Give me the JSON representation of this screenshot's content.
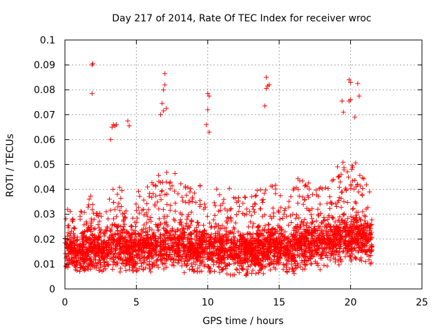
{
  "chart_data": {
    "type": "scatter",
    "title": "Day 217 of 2014, Rate Of TEC Index for receiver wroc",
    "xlabel": "GPS time / hours",
    "ylabel": "ROTI / TECUs",
    "xlim": [
      0,
      25
    ],
    "ylim": [
      0,
      0.1
    ],
    "x_ticks": [
      0,
      5,
      10,
      15,
      20,
      25
    ],
    "x_tick_labels": [
      "0",
      "5",
      "10",
      "15",
      "20",
      "25"
    ],
    "y_ticks": [
      0,
      0.01,
      0.02,
      0.03,
      0.04,
      0.05,
      0.06,
      0.07,
      0.08,
      0.09,
      0.1
    ],
    "y_tick_labels": [
      "0",
      "0.01",
      "0.02",
      "0.03",
      "0.04",
      "0.05",
      "0.06",
      "0.07",
      "0.08",
      "0.09",
      "0.1"
    ],
    "grid": true,
    "marker": "+",
    "color": "#ff0000",
    "data_range_x": [
      0,
      21.5
    ],
    "envelope": {
      "x": [
        0,
        0.5,
        1,
        1.5,
        2,
        2.5,
        3,
        3.5,
        4,
        4.5,
        5,
        5.5,
        6,
        6.5,
        7,
        7.5,
        8,
        8.5,
        9,
        9.5,
        10,
        10.5,
        11,
        11.5,
        12,
        12.5,
        13,
        13.5,
        14,
        14.5,
        15,
        15.5,
        16,
        16.5,
        17,
        17.5,
        18,
        18.5,
        19,
        19.5,
        20,
        20.5,
        21,
        21.5
      ],
      "typical_high": [
        0.035,
        0.03,
        0.028,
        0.04,
        0.035,
        0.03,
        0.038,
        0.045,
        0.042,
        0.04,
        0.038,
        0.04,
        0.042,
        0.045,
        0.05,
        0.045,
        0.048,
        0.045,
        0.04,
        0.042,
        0.045,
        0.04,
        0.038,
        0.04,
        0.035,
        0.038,
        0.04,
        0.042,
        0.04,
        0.045,
        0.04,
        0.035,
        0.04,
        0.045,
        0.042,
        0.04,
        0.042,
        0.045,
        0.048,
        0.05,
        0.048,
        0.05,
        0.045,
        0.04
      ],
      "typical_low": [
        0.008,
        0.008,
        0.007,
        0.007,
        0.008,
        0.007,
        0.007,
        0.008,
        0.006,
        0.007,
        0.006,
        0.007,
        0.006,
        0.005,
        0.004,
        0.005,
        0.006,
        0.006,
        0.007,
        0.006,
        0.007,
        0.006,
        0.006,
        0.005,
        0.004,
        0.005,
        0.006,
        0.006,
        0.005,
        0.006,
        0.007,
        0.006,
        0.006,
        0.007,
        0.008,
        0.007,
        0.008,
        0.008,
        0.008,
        0.009,
        0.009,
        0.009,
        0.01,
        0.01
      ],
      "median": [
        0.015,
        0.015,
        0.014,
        0.015,
        0.016,
        0.015,
        0.016,
        0.017,
        0.016,
        0.016,
        0.015,
        0.016,
        0.016,
        0.017,
        0.018,
        0.017,
        0.017,
        0.016,
        0.016,
        0.016,
        0.016,
        0.016,
        0.015,
        0.015,
        0.014,
        0.015,
        0.015,
        0.016,
        0.016,
        0.017,
        0.016,
        0.015,
        0.016,
        0.017,
        0.018,
        0.018,
        0.018,
        0.019,
        0.02,
        0.021,
        0.021,
        0.021,
        0.02,
        0.019
      ]
    },
    "outliers": [
      [
        1.9,
        0.09
      ],
      [
        1.95,
        0.0905
      ],
      [
        1.9,
        0.0785
      ],
      [
        3.3,
        0.065
      ],
      [
        3.4,
        0.066
      ],
      [
        3.5,
        0.0655
      ],
      [
        3.6,
        0.066
      ],
      [
        4.4,
        0.0675
      ],
      [
        4.5,
        0.0655
      ],
      [
        3.2,
        0.06
      ],
      [
        6.9,
        0.08
      ],
      [
        7.0,
        0.0865
      ],
      [
        7.0,
        0.082
      ],
      [
        6.8,
        0.0745
      ],
      [
        6.9,
        0.0715
      ],
      [
        6.7,
        0.07
      ],
      [
        7.1,
        0.0725
      ],
      [
        10.0,
        0.0785
      ],
      [
        10.1,
        0.0775
      ],
      [
        10.0,
        0.072
      ],
      [
        9.9,
        0.066
      ],
      [
        10.1,
        0.063
      ],
      [
        14.1,
        0.085
      ],
      [
        14.2,
        0.0815
      ],
      [
        14.3,
        0.082
      ],
      [
        14.1,
        0.0805
      ],
      [
        14.0,
        0.0735
      ],
      [
        19.4,
        0.0755
      ],
      [
        19.5,
        0.071
      ],
      [
        19.9,
        0.084
      ],
      [
        20.0,
        0.083
      ],
      [
        20.0,
        0.076
      ],
      [
        19.9,
        0.0755
      ],
      [
        20.5,
        0.0825
      ],
      [
        20.6,
        0.0775
      ],
      [
        20.3,
        0.069
      ]
    ]
  }
}
